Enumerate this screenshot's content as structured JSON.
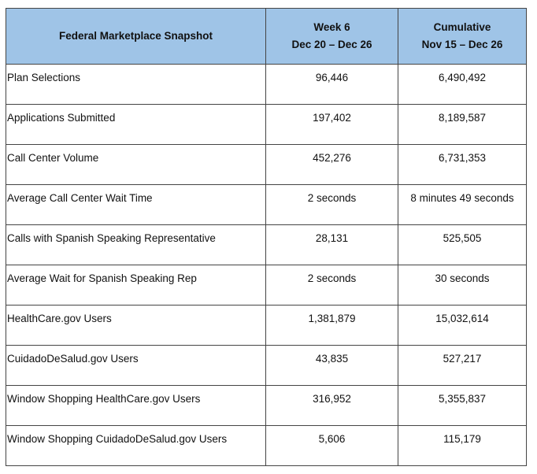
{
  "table": {
    "headers": [
      {
        "line1": "Federal Marketplace Snapshot",
        "line2": ""
      },
      {
        "line1": "Week 6",
        "line2": "Dec 20 – Dec 26"
      },
      {
        "line1": "Cumulative",
        "line2": "Nov 15 – Dec 26"
      }
    ],
    "rows": [
      {
        "label": "Plan Selections",
        "week": "96,446",
        "cumulative": "6,490,492"
      },
      {
        "label": "Applications Submitted",
        "week": "197,402",
        "cumulative": "8,189,587"
      },
      {
        "label": "Call Center Volume",
        "week": "452,276",
        "cumulative": "6,731,353"
      },
      {
        "label": "Average Call Center Wait Time",
        "week": "2 seconds",
        "cumulative": "8 minutes 49 seconds"
      },
      {
        "label": "Calls with Spanish Speaking Representative",
        "week": "28,131",
        "cumulative": "525,505"
      },
      {
        "label": "Average Wait for Spanish Speaking Rep",
        "week": "2 seconds",
        "cumulative": "30 seconds"
      },
      {
        "label": "HealthCare.gov Users",
        "week": "1,381,879",
        "cumulative": "15,032,614"
      },
      {
        "label": "CuidadoDeSalud.gov Users",
        "week": "43,835",
        "cumulative": "527,217"
      },
      {
        "label": "Window Shopping HealthCare.gov Users",
        "week": "316,952",
        "cumulative": "5,355,837"
      },
      {
        "label": "Window Shopping CuidadoDeSalud.gov Users",
        "week": "5,606",
        "cumulative": "115,179"
      }
    ]
  },
  "colors": {
    "header_bg": "#9fc4e7",
    "border": "#444444"
  }
}
